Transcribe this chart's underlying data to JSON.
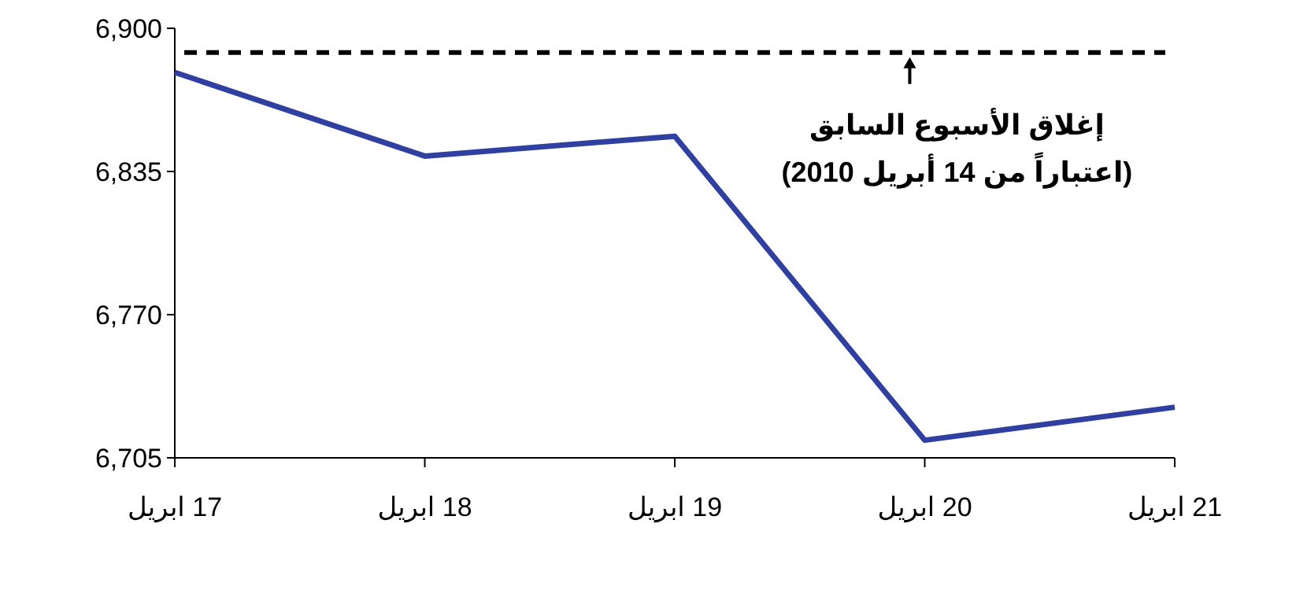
{
  "chart_data": {
    "type": "line",
    "categories": [
      "17 ابريل",
      "18 ابريل",
      "19 ابريل",
      "20 ابريل",
      "21 ابريل"
    ],
    "series": [
      {
        "color": "#3040a0",
        "values": [
          6880,
          6842,
          6851,
          6713,
          6728
        ]
      }
    ],
    "ylim": [
      6705,
      6900
    ],
    "yticks": [
      {
        "value": 6705,
        "label": "6,705"
      },
      {
        "value": 6770,
        "label": "6,770"
      },
      {
        "value": 6835,
        "label": "6,835"
      },
      {
        "value": 6900,
        "label": "6,900"
      }
    ],
    "ref_lines": [
      {
        "axis": "y",
        "value": 6889,
        "label": "إغلاق الأسبوع السابق\n(اعتباراً من 14  أبريل  2010)",
        "color": "#000000",
        "line_style": "dashed"
      }
    ],
    "grid": false,
    "marker": "none",
    "line_style": "solid"
  }
}
